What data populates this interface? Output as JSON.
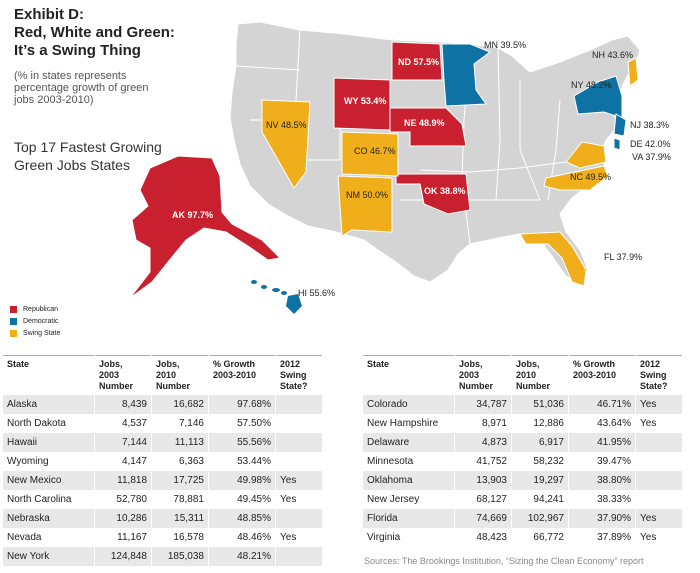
{
  "header": {
    "title_line1": "Exhibit D:",
    "title_line2": "Red, White and Green:",
    "title_line3": "It’s a Swing Thing",
    "subtitle_line1": "(% in states represents",
    "subtitle_line2": "percentage growth of green",
    "subtitle_line3": "jobs 2003-2010)",
    "top17_line1": "Top 17 Fastest Growing",
    "top17_line2": "Green Jobs States"
  },
  "colors": {
    "republican": "#c8202f",
    "democratic": "#0e72a4",
    "swing": "#f0ae1a",
    "other": "#d4d4d4",
    "border": "#ffffff"
  },
  "legend": {
    "republican": "Republican",
    "democratic": "Democratic",
    "swing": "Swing State"
  },
  "map_labels": {
    "ND": "ND 57.5%",
    "MN": "MN 39.5%",
    "NH": "NH 43.6%",
    "WY": "WY 53.4%",
    "NE": "NE 48.9%",
    "NV": "NV 48.5%",
    "CO": "CO 46.7%",
    "NY": "NY 48.2%",
    "NJ": "NJ 38.3%",
    "DE": "DE 42.0%",
    "VA": "VA 37.9%",
    "NC": "NC 49.5%",
    "NM": "NM 50.0%",
    "OK": "OK 38.8%",
    "AK": "AK 97.7%",
    "FL": "FL 37.9%",
    "HI": "HI 55.6%"
  },
  "table_headers": {
    "state": "State",
    "jobs2003_line1": "Jobs,",
    "jobs2003_line2": "2003",
    "jobs2003_line3": "Number",
    "jobs2010_line1": "Jobs,",
    "jobs2010_line2": "2010",
    "jobs2010_line3": "Number",
    "growth_line1": "% Growth",
    "growth_line2": "2003-2010",
    "swing_line1": "2012",
    "swing_line2": "Swing",
    "swing_line3": "State?"
  },
  "table_left": [
    {
      "state": "Alaska",
      "jobs2003": "8,439",
      "jobs2010": "16,682",
      "growth": "97.68%",
      "swing": ""
    },
    {
      "state": "North Dakota",
      "jobs2003": "4,537",
      "jobs2010": "7,146",
      "growth": "57.50%",
      "swing": ""
    },
    {
      "state": "Hawaii",
      "jobs2003": "7,144",
      "jobs2010": "11,113",
      "growth": "55.56%",
      "swing": ""
    },
    {
      "state": "Wyoming",
      "jobs2003": "4,147",
      "jobs2010": "6,363",
      "growth": "53.44%",
      "swing": ""
    },
    {
      "state": "New Mexico",
      "jobs2003": "11,818",
      "jobs2010": "17,725",
      "growth": "49.98%",
      "swing": "Yes"
    },
    {
      "state": "North Carolina",
      "jobs2003": "52,780",
      "jobs2010": "78,881",
      "growth": "49.45%",
      "swing": "Yes"
    },
    {
      "state": "Nebraska",
      "jobs2003": "10,286",
      "jobs2010": "15,311",
      "growth": "48.85%",
      "swing": ""
    },
    {
      "state": "Nevada",
      "jobs2003": "11,167",
      "jobs2010": "16,578",
      "growth": "48.46%",
      "swing": "Yes"
    },
    {
      "state": "New York",
      "jobs2003": "124,848",
      "jobs2010": "185,038",
      "growth": "48.21%",
      "swing": ""
    }
  ],
  "table_right": [
    {
      "state": "Colorado",
      "jobs2003": "34,787",
      "jobs2010": "51,036",
      "growth": "46.71%",
      "swing": "Yes"
    },
    {
      "state": "New Hampshire",
      "jobs2003": "8,971",
      "jobs2010": "12,886",
      "growth": "43.64%",
      "swing": "Yes"
    },
    {
      "state": "Delaware",
      "jobs2003": "4,873",
      "jobs2010": "6,917",
      "growth": "41.95%",
      "swing": ""
    },
    {
      "state": "Minnesota",
      "jobs2003": "41,752",
      "jobs2010": "58,232",
      "growth": "39.47%",
      "swing": ""
    },
    {
      "state": "Oklahoma",
      "jobs2003": "13,903",
      "jobs2010": "19,297",
      "growth": "38.80%",
      "swing": ""
    },
    {
      "state": "New Jersey",
      "jobs2003": "68,127",
      "jobs2010": "94,241",
      "growth": "38.33%",
      "swing": ""
    },
    {
      "state": "Florida",
      "jobs2003": "74,669",
      "jobs2010": "102,967",
      "growth": "37.90%",
      "swing": "Yes"
    },
    {
      "state": "Virginia",
      "jobs2003": "48,423",
      "jobs2010": "66,772",
      "growth": "37.89%",
      "swing": "Yes"
    }
  ],
  "source": "Sources: The Brookings Institution, “Sizing the Clean Economy” report"
}
